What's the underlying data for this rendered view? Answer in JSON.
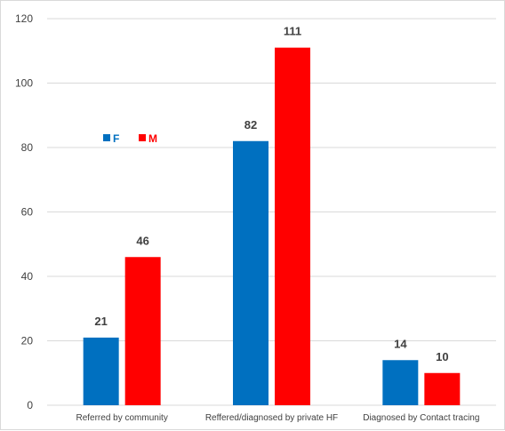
{
  "chart_data": {
    "type": "bar",
    "categories": [
      "Referred by community",
      "Reffered/diagnosed by private HF",
      "Diagnosed by Contact tracing"
    ],
    "series": [
      {
        "name": "F",
        "values": [
          21,
          82,
          14
        ],
        "color": "#0070c0"
      },
      {
        "name": "M",
        "values": [
          46,
          111,
          10
        ],
        "color": "#ff0000"
      }
    ],
    "ylim": [
      0,
      120
    ],
    "yticks": [
      0,
      20,
      40,
      60,
      80,
      100,
      120
    ],
    "grid": true,
    "legend": "upper-left inside plot",
    "axis_color": "#d9d9d9"
  }
}
